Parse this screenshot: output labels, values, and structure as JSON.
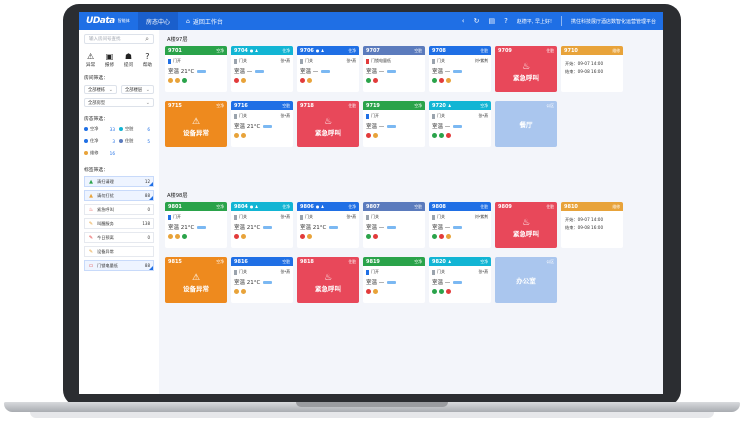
{
  "topbar": {
    "logo": "Data",
    "logo_prefix": "U",
    "logo_sub": "智能体",
    "nav_active": "房态中心",
    "nav_home": "返回工作台",
    "greeting": "赵德平, 早上好!",
    "platform": "携住科技展厅酒店数智化运营管理平台"
  },
  "sidebar": {
    "search_placeholder": "输入房间号查找",
    "tools": [
      {
        "icon": "⚠",
        "label": "异常"
      },
      {
        "icon": "▣",
        "label": "报修"
      },
      {
        "icon": "☗",
        "label": "提问"
      },
      {
        "icon": "?",
        "label": "帮助"
      }
    ],
    "room_filter_title": "房间筛选：",
    "filters": {
      "building": "全部楼栋",
      "floor": "全部楼层",
      "type": "全部房型"
    },
    "status_title": "房态筛选：",
    "statuses": [
      {
        "label": "空净",
        "count": "33",
        "color": "#1f6fe5"
      },
      {
        "label": "空脏",
        "count": "6",
        "color": "#12b5d4"
      },
      {
        "label": "住净",
        "count": "3",
        "color": "#1f6fe5"
      },
      {
        "label": "住脏",
        "count": "5",
        "color": "#5b7bbd"
      },
      {
        "label": "维修",
        "count": "16",
        "color": "#e8a33a"
      }
    ],
    "tag_title": "标签筛选：",
    "tags": [
      {
        "icon": "▲",
        "label": "清扫请理",
        "count": "12",
        "color": "#2aa34a",
        "selected": true
      },
      {
        "icon": "▲",
        "label": "请勿打扰",
        "count": "88",
        "color": "#e8a33a",
        "selected": true
      },
      {
        "icon": "♨",
        "label": "紧急呼叫",
        "count": "0",
        "color": "#e23b3b",
        "selected": false
      },
      {
        "icon": "✎",
        "label": "叫醒服务",
        "count": "138",
        "color": "#e8a33a",
        "selected": false
      },
      {
        "icon": "✎",
        "label": "今日预离",
        "count": "0",
        "color": "#e23b3b",
        "selected": false
      },
      {
        "icon": "✎",
        "label": "设备异常",
        "count": "",
        "color": "#e8a33a",
        "selected": false
      },
      {
        "icon": "▭",
        "label": "门锁电量低",
        "count": "88",
        "color": "#e23b3b",
        "selected": true
      }
    ]
  },
  "buildings": [
    {
      "title": "A楼97层",
      "rooms": [
        {
          "no": "9701",
          "status": "空净",
          "color": "#2aa34a",
          "door": "门开",
          "door_state": "open",
          "temp": "室温 21°C",
          "cleaner": "",
          "icons": [
            "#e8a33a",
            "#e8a33a",
            "#2aa34a"
          ],
          "head_icons": ""
        },
        {
          "no": "9704",
          "status": "住净",
          "color": "#12b5d4",
          "door": "门关",
          "door_state": "closed",
          "temp": "室温 —",
          "cleaner": "张*燕",
          "icons": [
            "#e23b3b",
            "#e8a33a"
          ],
          "head_icons": "● ♟"
        },
        {
          "no": "9706",
          "status": "住净",
          "color": "#1f6fe5",
          "door": "门关",
          "door_state": "closed",
          "temp": "室温 —",
          "cleaner": "张*燕",
          "icons": [
            "#e23b3b",
            "#e8a33a"
          ],
          "head_icons": "● ♟"
        },
        {
          "no": "9707",
          "status": "空脏",
          "color": "#5b7bbd",
          "door": "门锁电量低",
          "door_state": "warn",
          "temp": "室温 —",
          "cleaner": "",
          "icons": [
            "#2aa34a",
            "#e23b3b"
          ],
          "head_icons": ""
        },
        {
          "no": "9708",
          "status": "住脏",
          "color": "#1f6fe5",
          "door": "门关",
          "door_state": "closed",
          "temp": "室温 —",
          "cleaner": "刘*紫荆",
          "icons": [
            "#2aa34a",
            "#e23b3b",
            "#e8a33a"
          ],
          "head_icons": ""
        }
      ],
      "alarms": [
        {
          "no": "9709",
          "status": "住脏",
          "text": "紧急呼叫",
          "color": "#e8485a",
          "icon": "♨"
        }
      ],
      "checkin": {
        "no": "9710",
        "status": "维修",
        "color": "#e8a33a",
        "start": "开始：09-07 14:00",
        "end": "结束：09-08 16:00"
      },
      "row2": [
        {
          "kind": "alarm",
          "no": "9715",
          "status": "空净",
          "text": "设备异常",
          "color": "#ee8a1e",
          "icon": "⚠"
        },
        {
          "kind": "room",
          "no": "9716",
          "status": "空脏",
          "color": "#1f6fe5",
          "door": "门关",
          "door_state": "closed",
          "temp": "室温 21°C",
          "cleaner": "张*燕",
          "icons": [
            "#e8a33a",
            "#e8a33a"
          ]
        },
        {
          "kind": "alarm",
          "no": "9718",
          "status": "住脏",
          "text": "紧急呼叫",
          "color": "#e8485a",
          "icon": "♨"
        },
        {
          "kind": "room",
          "no": "9719",
          "status": "空净",
          "color": "#2aa34a",
          "door": "门开",
          "door_state": "open",
          "temp": "室温 —",
          "cleaner": "",
          "icons": [
            "#e23b3b",
            "#e8a33a"
          ]
        },
        {
          "kind": "room",
          "no": "9720",
          "status": "空净",
          "color": "#12b5d4",
          "door": "门关",
          "door_state": "closed",
          "temp": "室温 —",
          "cleaner": "张*燕",
          "icons": [
            "#2aa34a",
            "#2aa34a",
            "#e23b3b"
          ],
          "head_icons": "♟"
        },
        {
          "kind": "public",
          "label": "餐厅",
          "tag": "公区"
        }
      ]
    },
    {
      "title": "A楼98层",
      "rooms": [
        {
          "no": "9801",
          "status": "空净",
          "color": "#2aa34a",
          "door": "门开",
          "door_state": "open",
          "temp": "室温 21°C",
          "cleaner": "",
          "icons": [
            "#e8a33a",
            "#e8a33a",
            "#2aa34a"
          ],
          "head_icons": ""
        },
        {
          "no": "9804",
          "status": "住净",
          "color": "#12b5d4",
          "door": "门关",
          "door_state": "closed",
          "temp": "室温 21°C",
          "cleaner": "张*燕",
          "icons": [
            "#e23b3b",
            "#e8a33a"
          ],
          "head_icons": "● ♟"
        },
        {
          "no": "9806",
          "status": "住净",
          "color": "#1f6fe5",
          "door": "门关",
          "door_state": "closed",
          "temp": "室温 21°C",
          "cleaner": "张*燕",
          "icons": [
            "#e23b3b",
            "#e8a33a"
          ],
          "head_icons": "● ♟"
        },
        {
          "no": "9807",
          "status": "空脏",
          "color": "#5b7bbd",
          "door": "门关",
          "door_state": "closed",
          "temp": "室温 —",
          "cleaner": "",
          "icons": [
            "#2aa34a",
            "#e23b3b"
          ],
          "head_icons": ""
        },
        {
          "no": "9808",
          "status": "住脏",
          "color": "#1f6fe5",
          "door": "门关",
          "door_state": "closed",
          "temp": "室温 —",
          "cleaner": "刘*紫荆",
          "icons": [
            "#2aa34a",
            "#e23b3b",
            "#e8a33a"
          ],
          "head_icons": ""
        }
      ],
      "alarms": [
        {
          "no": "9809",
          "status": "住脏",
          "text": "紧急呼叫",
          "color": "#e8485a",
          "icon": "♨"
        }
      ],
      "checkin": {
        "no": "9810",
        "status": "维修",
        "color": "#e8a33a",
        "start": "开始：09-07 14:00",
        "end": "结束：09-08 16:00"
      },
      "row2": [
        {
          "kind": "alarm",
          "no": "9815",
          "status": "空净",
          "text": "设备异常",
          "color": "#ee8a1e",
          "icon": "⚠"
        },
        {
          "kind": "room",
          "no": "9816",
          "status": "空脏",
          "color": "#1f6fe5",
          "door": "门关",
          "door_state": "closed",
          "temp": "室温 21°C",
          "cleaner": "张*燕",
          "icons": [
            "#e8a33a",
            "#e8a33a"
          ]
        },
        {
          "kind": "alarm",
          "no": "9818",
          "status": "住脏",
          "text": "紧急呼叫",
          "color": "#e8485a",
          "icon": "♨"
        },
        {
          "kind": "room",
          "no": "9819",
          "status": "空净",
          "color": "#2aa34a",
          "door": "门开",
          "door_state": "open",
          "temp": "室温 —",
          "cleaner": "",
          "icons": [
            "#e23b3b",
            "#e8a33a"
          ]
        },
        {
          "kind": "room",
          "no": "9820",
          "status": "空净",
          "color": "#12b5d4",
          "door": "门关",
          "door_state": "closed",
          "temp": "室温 —",
          "cleaner": "张*燕",
          "icons": [
            "#2aa34a",
            "#2aa34a",
            "#e23b3b"
          ],
          "head_icons": "♟"
        },
        {
          "kind": "public",
          "label": "办公室",
          "tag": "公区"
        }
      ]
    }
  ]
}
